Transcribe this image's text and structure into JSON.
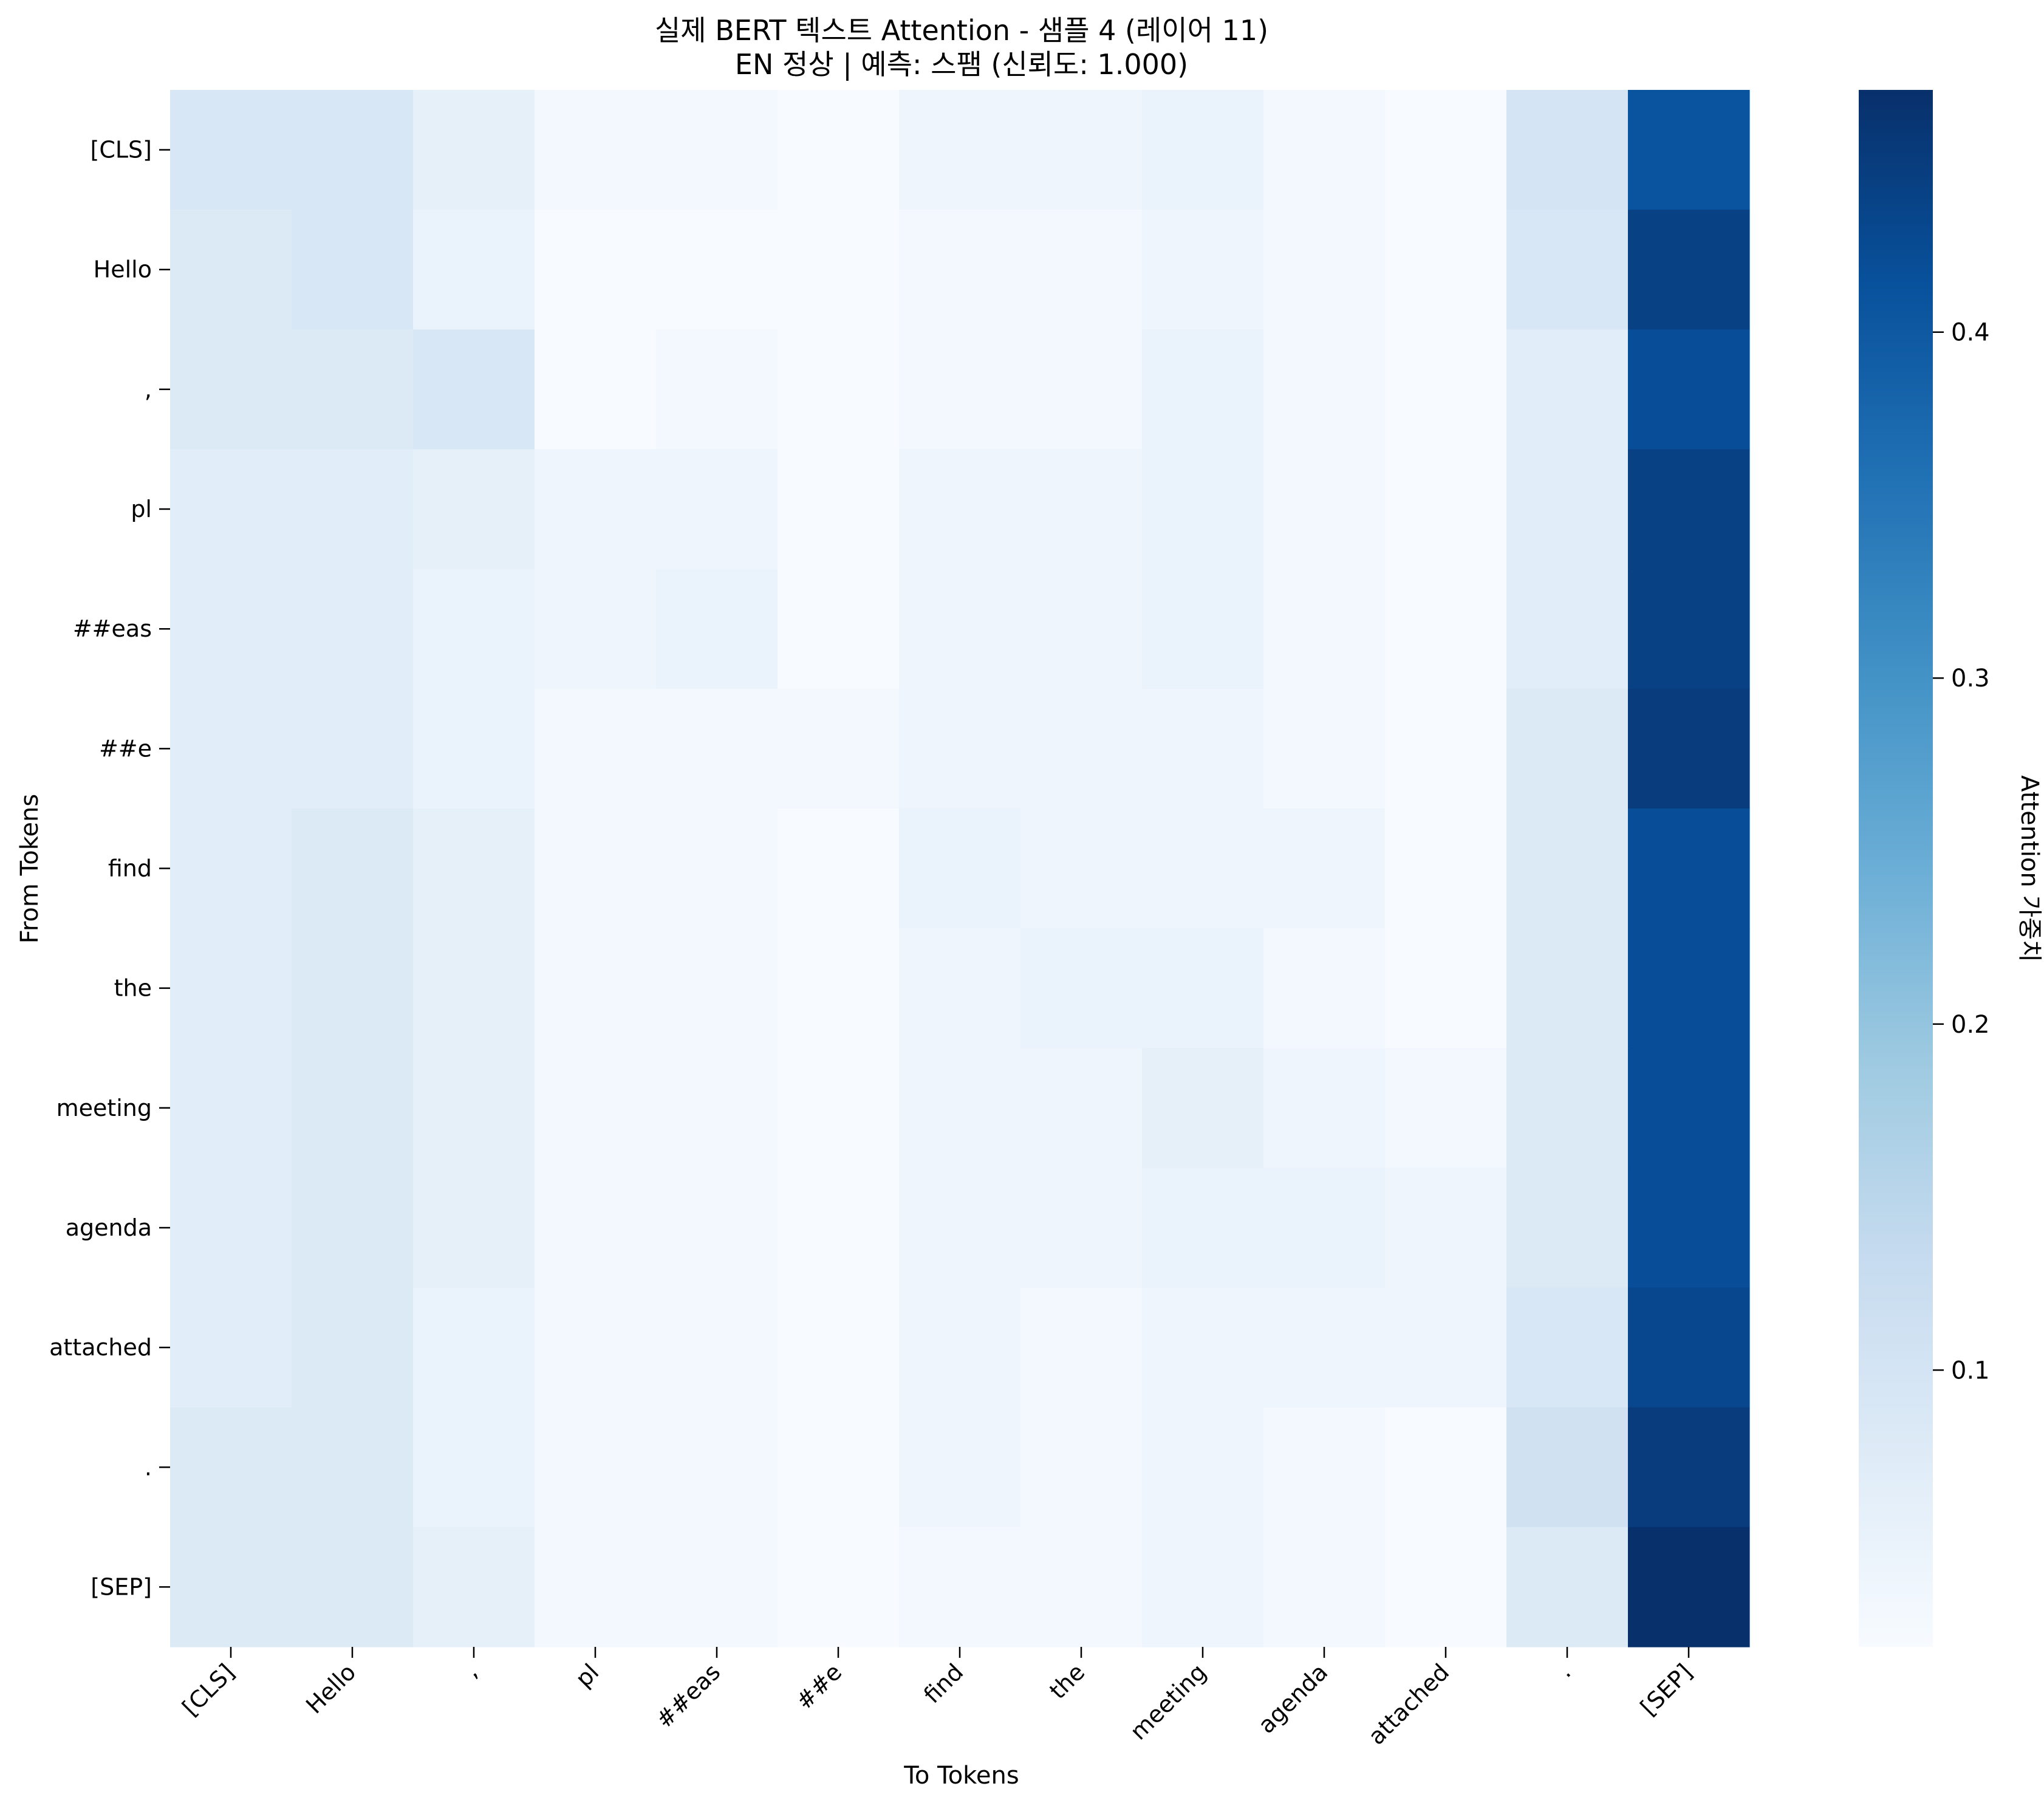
{
  "chart_data": {
    "type": "heatmap",
    "title": "실제 BERT 텍스트 Attention - 샘플 4 (레이어 11)",
    "subtitle": "EN 정상 | 예측: 스팸 (신뢰도: 1.000)",
    "xlabel": "To Tokens",
    "ylabel": "From Tokens",
    "x_tokens": [
      "[CLS]",
      "Hello",
      ",",
      "pl",
      "##eas",
      "##e",
      "find",
      "the",
      "meeting",
      "agenda",
      "attached",
      ".",
      "[SEP]"
    ],
    "y_tokens": [
      "[CLS]",
      "Hello",
      ",",
      "pl",
      "##eas",
      "##e",
      "find",
      "the",
      "meeting",
      "agenda",
      "attached",
      ".",
      "[SEP]"
    ],
    "values": [
      [
        0.09,
        0.09,
        0.06,
        0.03,
        0.03,
        0.02,
        0.04,
        0.04,
        0.05,
        0.03,
        0.02,
        0.1,
        0.41
      ],
      [
        0.08,
        0.09,
        0.05,
        0.02,
        0.02,
        0.02,
        0.03,
        0.03,
        0.04,
        0.03,
        0.02,
        0.09,
        0.44
      ],
      [
        0.08,
        0.08,
        0.09,
        0.02,
        0.03,
        0.02,
        0.03,
        0.03,
        0.05,
        0.03,
        0.02,
        0.07,
        0.42
      ],
      [
        0.07,
        0.07,
        0.06,
        0.04,
        0.04,
        0.02,
        0.04,
        0.04,
        0.05,
        0.03,
        0.02,
        0.07,
        0.44
      ],
      [
        0.07,
        0.07,
        0.05,
        0.04,
        0.05,
        0.02,
        0.04,
        0.04,
        0.05,
        0.03,
        0.02,
        0.07,
        0.44
      ],
      [
        0.07,
        0.07,
        0.05,
        0.03,
        0.03,
        0.03,
        0.04,
        0.04,
        0.04,
        0.03,
        0.02,
        0.08,
        0.45
      ],
      [
        0.07,
        0.08,
        0.06,
        0.03,
        0.03,
        0.02,
        0.05,
        0.04,
        0.04,
        0.04,
        0.02,
        0.08,
        0.42
      ],
      [
        0.07,
        0.08,
        0.06,
        0.03,
        0.03,
        0.02,
        0.04,
        0.05,
        0.05,
        0.03,
        0.02,
        0.08,
        0.42
      ],
      [
        0.07,
        0.08,
        0.06,
        0.03,
        0.03,
        0.02,
        0.04,
        0.04,
        0.06,
        0.04,
        0.03,
        0.08,
        0.42
      ],
      [
        0.07,
        0.08,
        0.06,
        0.03,
        0.03,
        0.02,
        0.04,
        0.04,
        0.05,
        0.05,
        0.04,
        0.08,
        0.42
      ],
      [
        0.07,
        0.08,
        0.05,
        0.03,
        0.03,
        0.02,
        0.04,
        0.03,
        0.04,
        0.04,
        0.04,
        0.09,
        0.43
      ],
      [
        0.08,
        0.08,
        0.05,
        0.03,
        0.03,
        0.02,
        0.04,
        0.03,
        0.04,
        0.03,
        0.02,
        0.11,
        0.45
      ],
      [
        0.08,
        0.08,
        0.06,
        0.03,
        0.03,
        0.02,
        0.03,
        0.03,
        0.04,
        0.03,
        0.02,
        0.08,
        0.47
      ]
    ],
    "zlim": [
      0.02,
      0.47
    ],
    "colormap": "Blues",
    "colorbar": {
      "label": "Attention 가중치",
      "ticks": [
        0.1,
        0.2,
        0.3,
        0.4
      ],
      "tick_labels": [
        "0.1",
        "0.2",
        "0.3",
        "0.4"
      ]
    }
  }
}
